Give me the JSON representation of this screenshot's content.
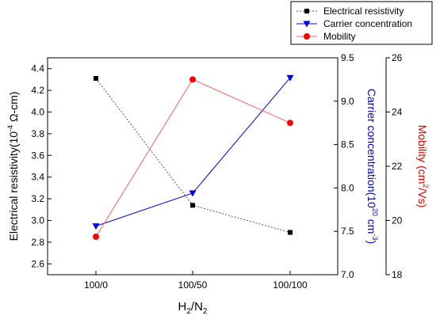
{
  "chart_data": {
    "type": "line",
    "categories": [
      "100/0",
      "100/50",
      "100/100"
    ],
    "xlabel": {
      "base": "H",
      "sub1": "2",
      "mid": "/N",
      "sub2": "2"
    },
    "axes": {
      "left": {
        "label_main": "Electrical resistivity(10",
        "label_exp": "-4",
        "label_tail": " Ω-cm)",
        "ylim": [
          2.5,
          4.5
        ],
        "ticks": [
          "2.6",
          "2.8",
          "3.0",
          "3.2",
          "3.4",
          "3.6",
          "3.8",
          "4.0",
          "4.2",
          "4.4"
        ],
        "color": "#000000"
      },
      "right1": {
        "label_main": "Carrier concentration(10",
        "label_exp": "20",
        "label_mid": " cm",
        "label_exp2": "-3",
        "label_tail": ")",
        "ylim": [
          7.0,
          9.5
        ],
        "ticks": [
          "7.0",
          "7.5",
          "8.0",
          "8.5",
          "9.0",
          "9.5"
        ],
        "color": "#0000cc"
      },
      "right2": {
        "label_main": "Mobility (cm",
        "label_exp": "2",
        "label_tail": "/Vs)",
        "ylim": [
          18,
          26
        ],
        "ticks": [
          "18",
          "20",
          "22",
          "24",
          "26"
        ],
        "color": "#dd0000"
      }
    },
    "series": [
      {
        "name": "Electrical resistivity",
        "axis": "left",
        "values": [
          4.31,
          3.14,
          2.89
        ],
        "color": "#000000",
        "line_color": "#555555",
        "marker": "square",
        "dash": "2,2"
      },
      {
        "name": "Carrier concentration",
        "axis": "right1",
        "values": [
          7.56,
          7.94,
          9.27
        ],
        "color": "#0000ee",
        "line_color": "#0000ee",
        "marker": "triangle-down",
        "dash": ""
      },
      {
        "name": "Mobility",
        "axis": "right2",
        "values": [
          19.4,
          25.2,
          23.6
        ],
        "color": "#ff0000",
        "line_color": "#ff6060",
        "marker": "circle",
        "dash": ""
      }
    ],
    "legend": {
      "position": "top-right"
    },
    "grid": false
  }
}
